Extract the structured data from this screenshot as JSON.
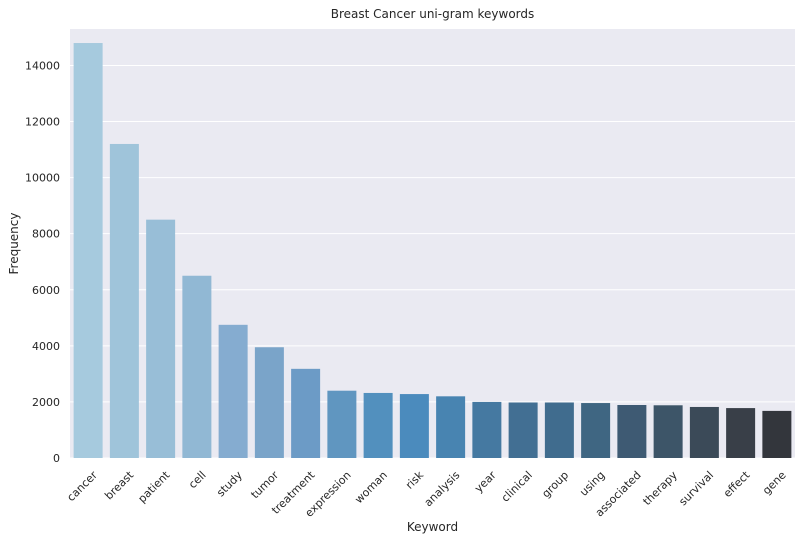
{
  "chart_data": {
    "type": "bar",
    "title": "Breast Cancer uni-gram keywords",
    "xlabel": "Keyword",
    "ylabel": "Frequency",
    "categories": [
      "cancer",
      "breast",
      "patient",
      "cell",
      "study",
      "tumor",
      "treatment",
      "expression",
      "woman",
      "risk",
      "analysis",
      "year",
      "clinical",
      "group",
      "using",
      "associated",
      "therapy",
      "survival",
      "effect",
      "gene"
    ],
    "values": [
      14800,
      11200,
      8500,
      6500,
      4750,
      3950,
      3180,
      2400,
      2320,
      2280,
      2200,
      2000,
      1980,
      1980,
      1960,
      1890,
      1880,
      1820,
      1780,
      1680
    ],
    "ylim": [
      0,
      15300
    ],
    "yticks": [
      0,
      2000,
      4000,
      6000,
      8000,
      10000,
      12000,
      14000
    ],
    "grid": true,
    "background": "#eaeaf2",
    "palette": [
      "#a6cade",
      "#9fc4da",
      "#98bed7",
      "#91b8d4",
      "#85acd0",
      "#7aa4c9",
      "#6c9bc6",
      "#6096c0",
      "#5290be",
      "#4b8bbd",
      "#4884b1",
      "#4579a1",
      "#426f93",
      "#406c8e",
      "#3f6682",
      "#3e5a73",
      "#3d5568",
      "#3b4a58",
      "#393f48",
      "#33363c"
    ]
  }
}
